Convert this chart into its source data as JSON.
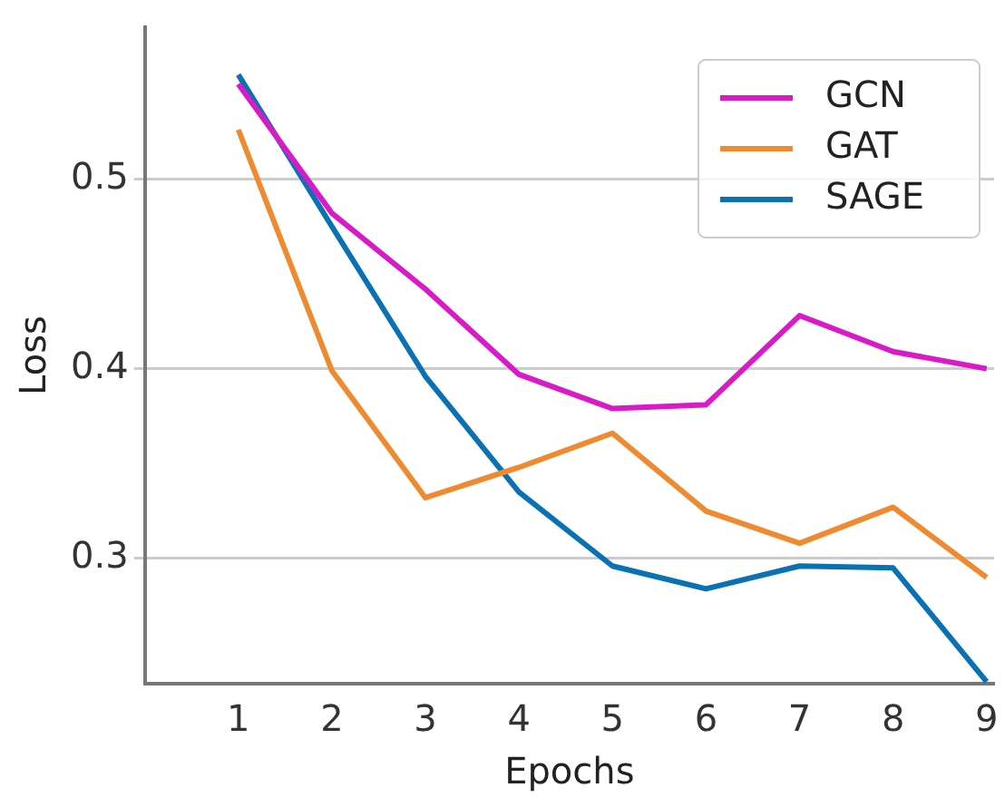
{
  "chart_data": {
    "type": "line",
    "xlabel": "Epochs",
    "ylabel": "Loss",
    "x": [
      1,
      2,
      3,
      4,
      5,
      6,
      7,
      8,
      9
    ],
    "series": [
      {
        "name": "GCN",
        "color": "#d81ac8",
        "values": [
          0.55,
          0.482,
          0.442,
          0.397,
          0.379,
          0.381,
          0.428,
          0.409,
          0.4
        ]
      },
      {
        "name": "GAT",
        "color": "#f08a30",
        "values": [
          0.526,
          0.399,
          0.332,
          0.348,
          0.366,
          0.325,
          0.308,
          0.327,
          0.29
        ]
      },
      {
        "name": "SAGE",
        "color": "#0a72b4",
        "values": [
          0.555,
          0.475,
          0.396,
          0.335,
          0.296,
          0.284,
          0.296,
          0.295,
          0.235
        ]
      }
    ],
    "xlim": [
      0,
      9.08
    ],
    "ylim": [
      0.234,
      0.58
    ],
    "xticks": [
      1,
      2,
      3,
      4,
      5,
      6,
      7,
      8,
      9
    ],
    "yticks": [
      0.3,
      0.4,
      0.5
    ],
    "grid": "y",
    "legend": "top right",
    "marker": "none",
    "line_style": "solid"
  }
}
